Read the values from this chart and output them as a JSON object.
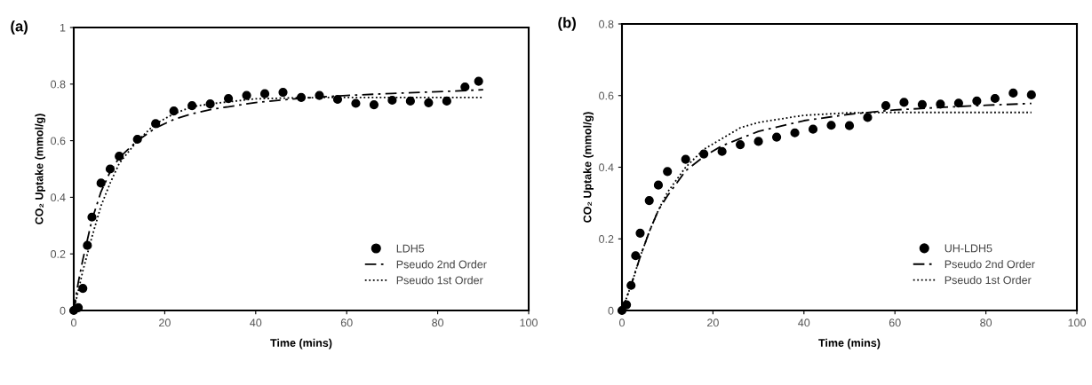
{
  "chart_data": [
    {
      "type": "scatter",
      "xlabel": "Time (mins)",
      "ylabel": "CO₂ Uptake (mmol/g)",
      "annotations": [
        "(a)"
      ],
      "xlim": [
        0,
        100
      ],
      "xticks": [
        0,
        20,
        40,
        60,
        80,
        100
      ],
      "ylim": [
        0,
        1
      ],
      "yticks": [
        0,
        {
          "value": 0.2,
          "label": "0.2"
        },
        {
          "value": 0.4,
          "label": "0.4"
        },
        {
          "value": 0.6,
          "label": "0.6"
        },
        {
          "value": 0.8,
          "label": "0.8"
        },
        1
      ],
      "grid": false,
      "legend": "bottom right",
      "series": [
        {
          "name": "LDH5",
          "color": "#000000",
          "marker": "circle",
          "x": [
            0,
            1,
            2,
            3,
            4,
            6,
            8,
            10,
            14,
            18,
            22,
            26,
            30,
            34,
            38,
            42,
            46,
            50,
            54,
            58,
            62,
            66,
            70,
            74,
            78,
            82,
            86,
            89
          ],
          "values": [
            0,
            0.01,
            0.078,
            0.23,
            0.33,
            0.45,
            0.5,
            0.545,
            0.605,
            0.66,
            0.705,
            0.724,
            0.73,
            0.749,
            0.76,
            0.766,
            0.771,
            0.753,
            0.76,
            0.746,
            0.732,
            0.727,
            0.743,
            0.74,
            0.734,
            0.74,
            0.79,
            0.81
          ]
        },
        {
          "name": "Pseudo 2nd Order",
          "type": "line",
          "color": "#000000",
          "marker": "none",
          "line_style": "dashdot",
          "x": [
            0,
            1,
            2,
            4,
            6,
            8,
            10,
            14,
            18,
            22,
            26,
            30,
            40,
            50,
            60,
            70,
            80,
            90
          ],
          "values": [
            0,
            0.1,
            0.18,
            0.32,
            0.42,
            0.49,
            0.54,
            0.6,
            0.645,
            0.675,
            0.695,
            0.71,
            0.735,
            0.75,
            0.76,
            0.767,
            0.773,
            0.78
          ]
        },
        {
          "name": "Pseudo 1st Order",
          "type": "line",
          "color": "#000000",
          "marker": "none",
          "line_style": "dotted",
          "x": [
            0,
            1,
            2,
            4,
            6,
            8,
            10,
            14,
            18,
            22,
            26,
            30,
            40,
            50,
            60,
            90
          ],
          "values": [
            0,
            0.07,
            0.14,
            0.26,
            0.37,
            0.45,
            0.52,
            0.6,
            0.66,
            0.695,
            0.72,
            0.73,
            0.748,
            0.752,
            0.753,
            0.753
          ]
        }
      ]
    },
    {
      "type": "scatter",
      "xlabel": "Time (mins)",
      "ylabel": "CO₂ Uptake (mmol/g)",
      "annotations": [
        "(b)"
      ],
      "xlim": [
        0,
        100
      ],
      "xticks": [
        0,
        20,
        40,
        60,
        80,
        100
      ],
      "ylim": [
        0,
        0.8
      ],
      "yticks": [
        0,
        {
          "value": 0.2,
          "label": "0.2"
        },
        {
          "value": 0.4,
          "label": "0.4"
        },
        {
          "value": 0.6,
          "label": "0.6"
        },
        {
          "value": 0.8,
          "label": "0.8"
        }
      ],
      "grid": false,
      "legend": "bottom right",
      "series": [
        {
          "name": "UH-LDH5",
          "color": "#000000",
          "marker": "circle",
          "x": [
            0,
            1,
            2,
            3,
            4,
            6,
            8,
            10,
            14,
            18,
            22,
            26,
            30,
            34,
            38,
            42,
            46,
            50,
            54,
            58,
            62,
            66,
            70,
            74,
            78,
            82,
            86,
            90
          ],
          "values": [
            0,
            0.016,
            0.07,
            0.153,
            0.216,
            0.307,
            0.35,
            0.388,
            0.422,
            0.437,
            0.444,
            0.463,
            0.472,
            0.484,
            0.496,
            0.506,
            0.517,
            0.516,
            0.539,
            0.572,
            0.581,
            0.575,
            0.576,
            0.579,
            0.585,
            0.592,
            0.607,
            0.602
          ]
        },
        {
          "name": "Pseudo 2nd Order",
          "type": "line",
          "color": "#000000",
          "marker": "none",
          "line_style": "dashdot",
          "x": [
            0,
            2,
            4,
            6,
            8,
            10,
            14,
            18,
            22,
            26,
            30,
            40,
            50,
            60,
            70,
            80,
            90
          ],
          "values": [
            0,
            0.07,
            0.15,
            0.22,
            0.28,
            0.32,
            0.39,
            0.43,
            0.46,
            0.48,
            0.5,
            0.53,
            0.548,
            0.56,
            0.567,
            0.573,
            0.578
          ]
        },
        {
          "name": "Pseudo 1st Order",
          "type": "line",
          "color": "#000000",
          "marker": "none",
          "line_style": "dotted",
          "x": [
            0,
            2,
            4,
            6,
            8,
            10,
            14,
            18,
            22,
            26,
            30,
            40,
            50,
            60,
            90
          ],
          "values": [
            0,
            0.07,
            0.15,
            0.22,
            0.28,
            0.33,
            0.4,
            0.45,
            0.48,
            0.51,
            0.525,
            0.545,
            0.552,
            0.553,
            0.553
          ]
        }
      ]
    }
  ]
}
